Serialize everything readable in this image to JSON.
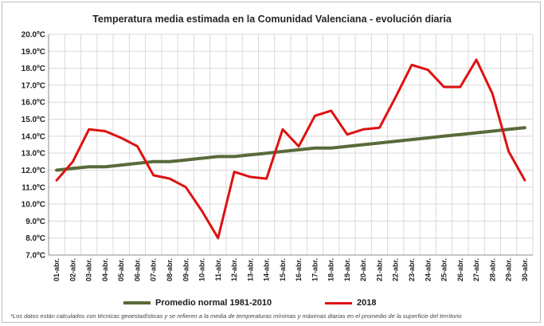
{
  "title": "Temperatura media estimada en la Comunidad Valenciana - evolución diaria",
  "footnote": "*Los datos están calculados con técnicas geoestadísticas y se refieren a la media de temperaturas mínimas y máximas diarias en el promedio de la superficie del territorio",
  "legend": {
    "normal_label": "Promedio normal 1981-2010",
    "year_label": "2018"
  },
  "colors": {
    "normal": "#5a6a3a",
    "year": "#e01010",
    "grid": "#d9d9d9"
  },
  "chart_data": {
    "type": "line",
    "title": "Temperatura media estimada en la Comunidad Valenciana - evolución diaria",
    "xlabel": "",
    "ylabel": "",
    "ylim": [
      7.0,
      20.0
    ],
    "y_ticks": [
      "7.0ºC",
      "8.0ºC",
      "9.0ºC",
      "10.0ºC",
      "11.0ºC",
      "12.0ºC",
      "13.0ºC",
      "14.0ºC",
      "15.0ºC",
      "16.0ºC",
      "17.0ºC",
      "18.0ºC",
      "19.0ºC",
      "20.0ºC"
    ],
    "categories": [
      "01-abr.",
      "02-abr.",
      "03-abr.",
      "04-abr.",
      "05-abr.",
      "06-abr.",
      "07-abr.",
      "08-abr.",
      "09-abr.",
      "10-abr.",
      "11-abr.",
      "12-abr.",
      "13-abr.",
      "14-abr.",
      "15-abr.",
      "16-abr.",
      "17-abr.",
      "18-abr.",
      "19-abr.",
      "20-abr.",
      "21-abr.",
      "22-abr.",
      "23-abr.",
      "24-abr.",
      "25-abr.",
      "26-abr.",
      "27-abr.",
      "28-abr.",
      "29-abr.",
      "30-abr."
    ],
    "grid": true,
    "legend_position": "bottom",
    "series": [
      {
        "name": "Promedio normal 1981-2010",
        "values": [
          12.0,
          12.1,
          12.2,
          12.2,
          12.3,
          12.4,
          12.5,
          12.5,
          12.6,
          12.7,
          12.8,
          12.8,
          12.9,
          13.0,
          13.1,
          13.2,
          13.3,
          13.3,
          13.4,
          13.5,
          13.6,
          13.7,
          13.8,
          13.9,
          14.0,
          14.1,
          14.2,
          14.3,
          14.4,
          14.5
        ]
      },
      {
        "name": "2018",
        "values": [
          11.4,
          12.5,
          14.4,
          14.3,
          13.9,
          13.4,
          11.7,
          11.5,
          11.0,
          9.6,
          8.0,
          11.9,
          11.6,
          11.5,
          14.4,
          13.4,
          15.2,
          15.5,
          14.1,
          14.4,
          14.5,
          16.3,
          18.2,
          17.9,
          16.9,
          16.9,
          18.5,
          16.5,
          13.1,
          11.4
        ]
      }
    ]
  }
}
